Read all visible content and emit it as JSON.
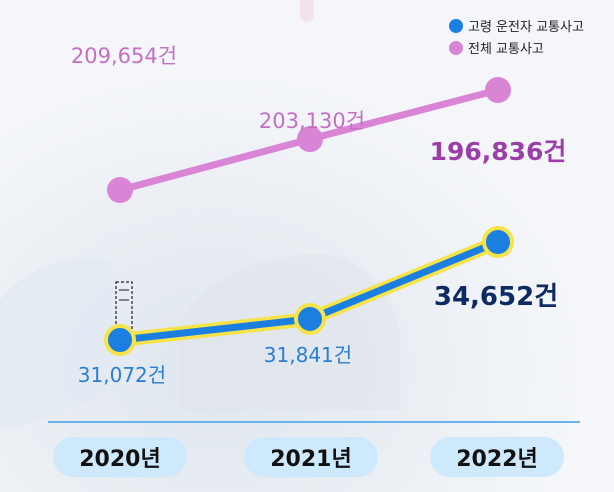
{
  "colors": {
    "senior": "#1a7fe0",
    "senior_outline": "#f6e34a",
    "total": "#da84d6",
    "total_label": "#c46fc4",
    "total_label_emph": "#9a3fa8",
    "senior_label": "#2b7fd3",
    "senior_label_emph": "#0d2a63",
    "axis_line": "#6ab3ea",
    "pill_bg": "#cde9fb",
    "background": "#f4f6f9"
  },
  "chart_data": {
    "type": "line",
    "categories": [
      "2020년",
      "2021년",
      "2022년"
    ],
    "series": [
      {
        "name": "고령 운전자 교통사고",
        "color": "#1a7fe0",
        "values": [
          31072,
          31841,
          34652
        ],
        "labels": [
          "31,072건",
          "31,841건",
          "34,652건"
        ]
      },
      {
        "name": "전체 교통사고",
        "color": "#da84d6",
        "values": [
          209654,
          203130,
          196836
        ],
        "labels": [
          "209,654건",
          "203,130건",
          "196,836건"
        ]
      }
    ],
    "legend_position": "top-right",
    "grid": false,
    "y_axis": "broken scale (values not to scale)"
  }
}
